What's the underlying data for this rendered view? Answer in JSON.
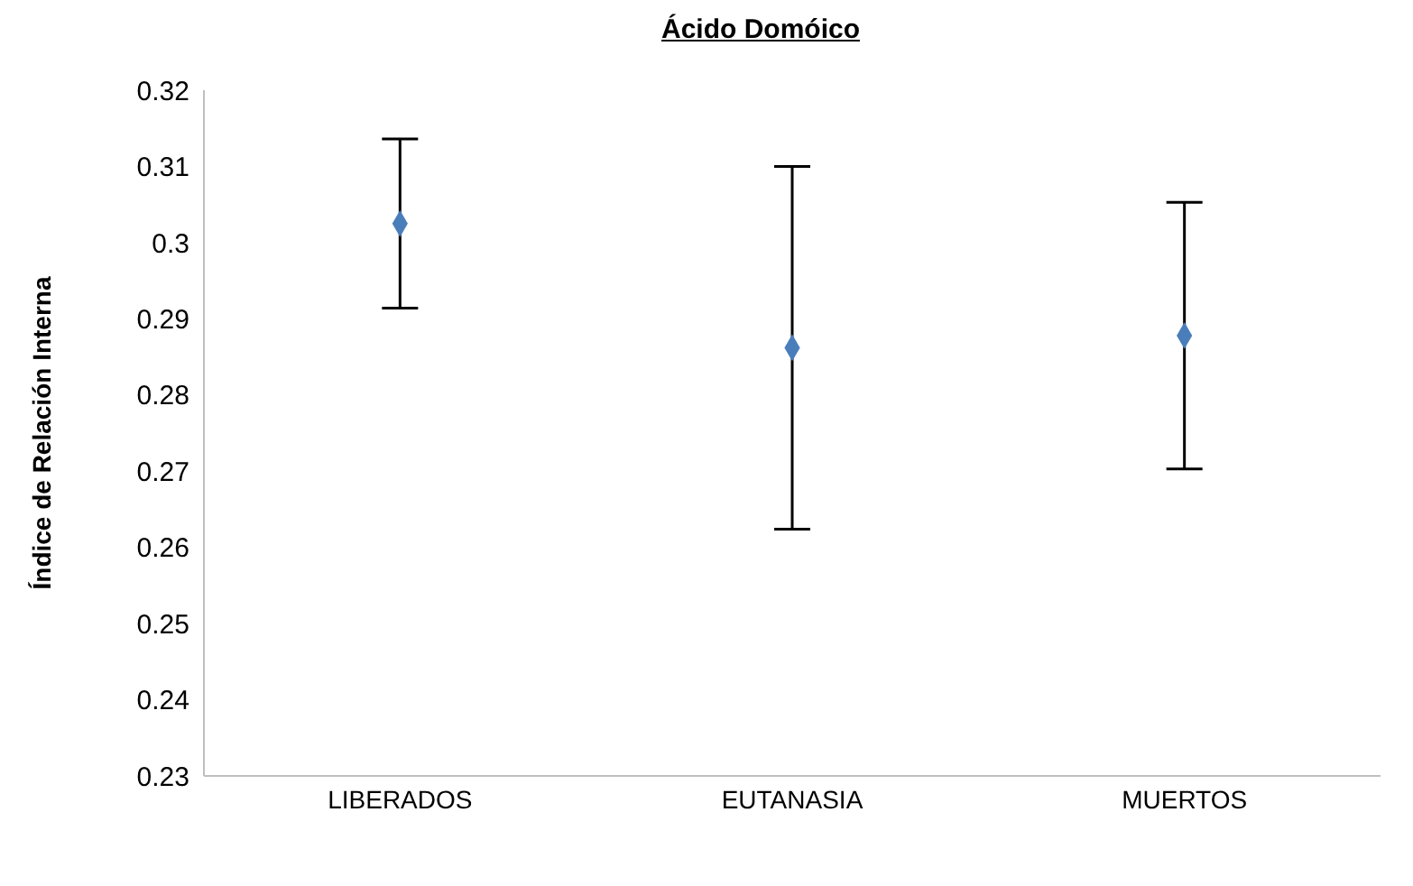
{
  "chart_data": {
    "type": "scatter",
    "title": "Ácido Domóico",
    "ylabel": "Índice de Relación Interna",
    "categories": [
      "LIBERADOS",
      "EUTANASIA",
      "MUERTOS"
    ],
    "series": [
      {
        "color": "#4a7ebb",
        "values": [
          0.3025,
          0.2862,
          0.2878
        ],
        "errors": [
          0.0111,
          0.0238,
          0.0175
        ]
      }
    ],
    "ylim": [
      0.23,
      0.32
    ],
    "yticks": [
      0.23,
      0.24,
      0.25,
      0.26,
      0.27,
      0.28,
      0.29,
      0.3,
      0.31,
      0.32
    ],
    "marker": "diamond"
  }
}
